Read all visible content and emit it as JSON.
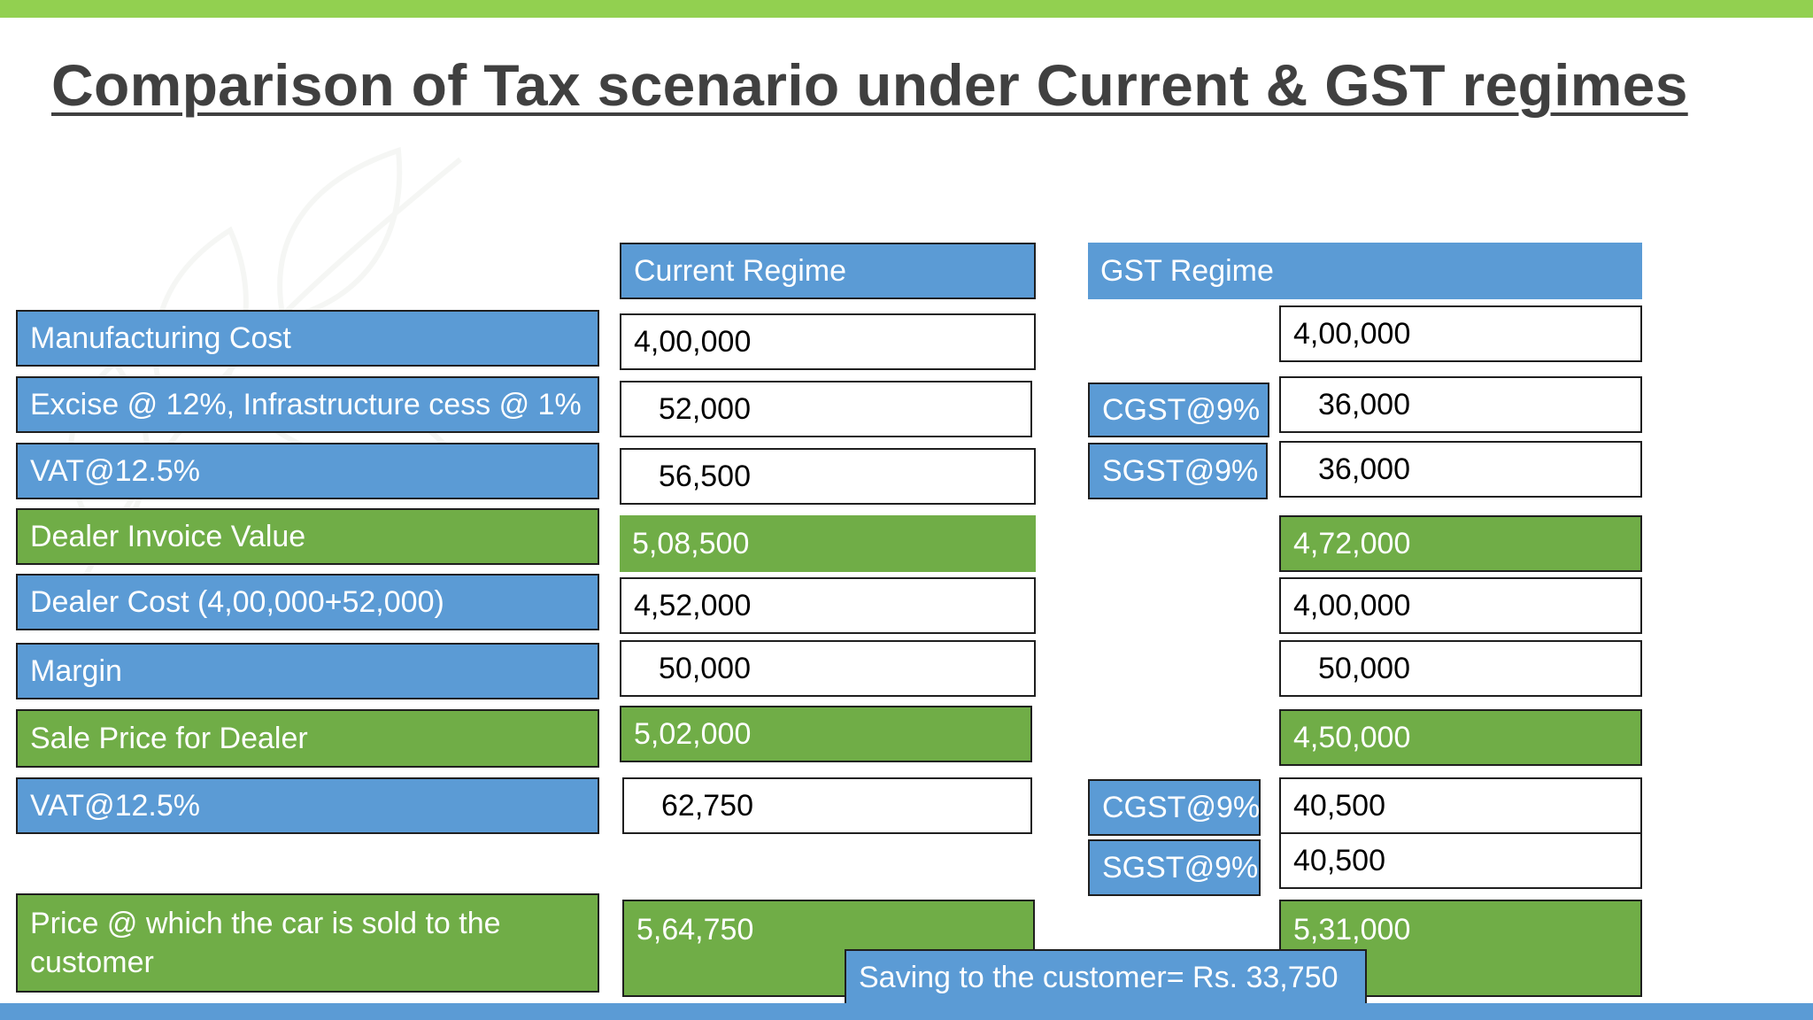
{
  "title": "Comparison of Tax scenario under Current & GST regimes",
  "headers": {
    "current": "Current Regime",
    "gst": "GST Regime"
  },
  "rows": [
    {
      "label": "Manufacturing Cost",
      "current": "4,00,000",
      "gst": "4,00,000"
    },
    {
      "label": "Excise @ 12%, Infrastructure cess @ 1%",
      "current": "52,000",
      "gst_tax": "CGST@9%",
      "gst": "36,000"
    },
    {
      "label": "VAT@12.5%",
      "current": "56,500",
      "gst_tax": "SGST@9%",
      "gst": "36,000"
    },
    {
      "label": "Dealer Invoice Value",
      "current": "5,08,500",
      "gst": "4,72,000"
    },
    {
      "label": "Dealer Cost (4,00,000+52,000)",
      "current": "4,52,000",
      "gst": "4,00,000"
    },
    {
      "label": "Margin",
      "current": "50,000",
      "gst": "50,000"
    },
    {
      "label": "Sale Price for  Dealer",
      "current": "5,02,000",
      "gst": "4,50,000"
    },
    {
      "label": "VAT@12.5%",
      "current": "62,750",
      "gst_tax": "CGST@9%",
      "gst": "40,500"
    },
    {
      "gst_tax": "SGST@9%",
      "gst": "40,500"
    },
    {
      "label": "Price @ which the car is sold to the customer",
      "current": "5,64,750",
      "gst": "5,31,000"
    }
  ],
  "saving": "Saving to the customer= Rs. 33,750",
  "colors": {
    "blue": "#5b9bd5",
    "green": "#70ad47",
    "top_bar": "#92d050",
    "title": "#404040"
  }
}
